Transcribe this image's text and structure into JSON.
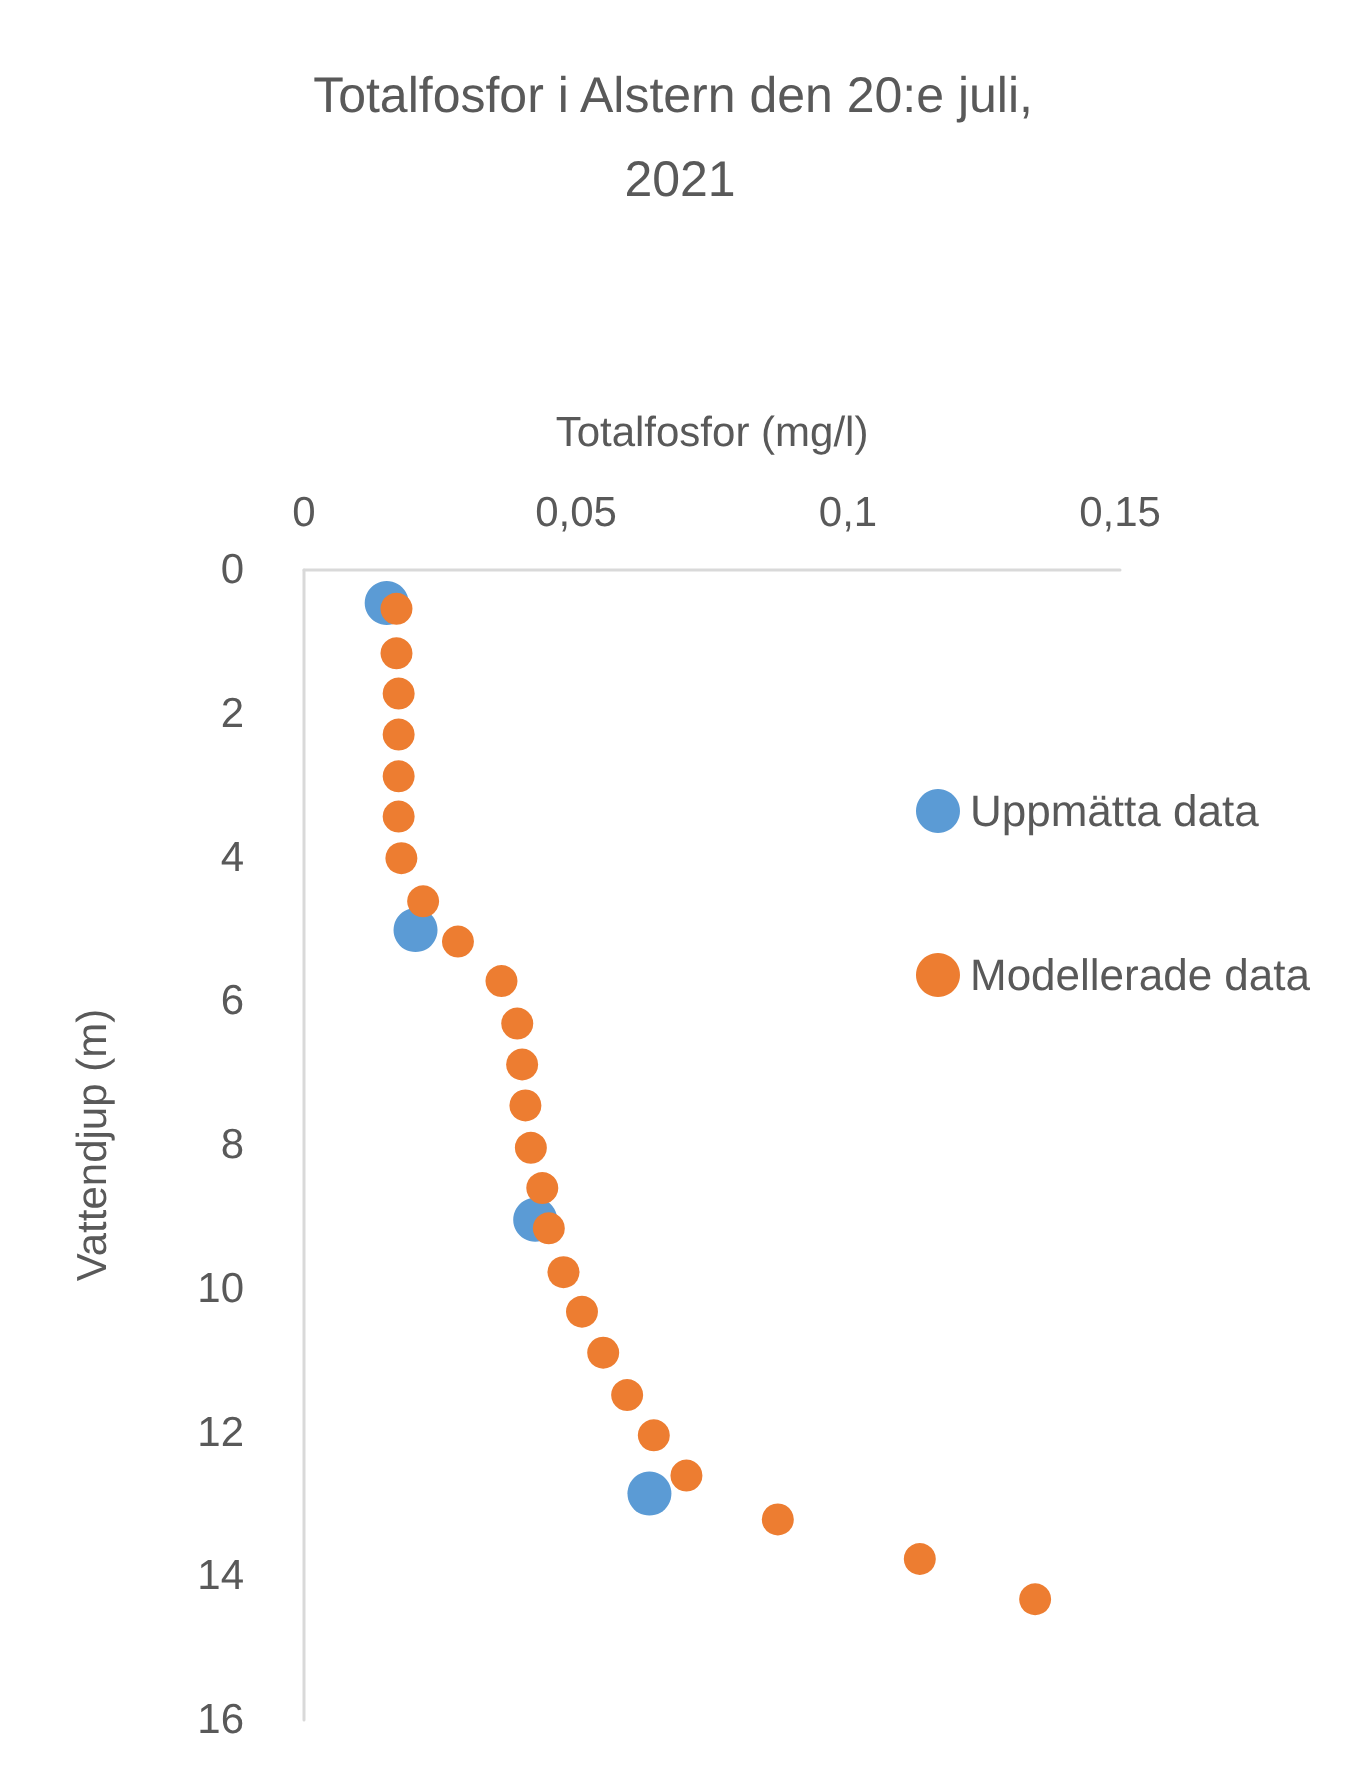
{
  "chart_data": {
    "type": "scatter",
    "title": "Totalfosfor i Alstern den 20:e juli, 2021",
    "xlabel": "Totalfosfor (mg/l)",
    "ylabel": "Vattendjup (m)",
    "xlim": [
      0,
      0.15
    ],
    "xticks": [
      {
        "value": 0,
        "label": "0"
      },
      {
        "value": 0.05,
        "label": "0,05"
      },
      {
        "value": 0.1,
        "label": "0,1"
      },
      {
        "value": 0.15,
        "label": "0,15"
      }
    ],
    "ylim": [
      16,
      0
    ],
    "yticks": [
      0,
      2,
      4,
      6,
      8,
      10,
      12,
      14,
      16
    ],
    "grid": false,
    "legend": "right",
    "marker": "circle",
    "series": [
      {
        "name": "Uppmätta data",
        "color": "#5b9bd5",
        "x": [
          0.0152,
          0.0205,
          0.0425,
          0.0635
        ],
        "values": [
          0.46,
          5.01,
          9.04,
          12.85
        ]
      },
      {
        "name": "Modellerade data",
        "color": "#ed7d31",
        "x": [
          0.017,
          0.017,
          0.0174,
          0.0174,
          0.0174,
          0.0174,
          0.0179,
          0.0219,
          0.0283,
          0.0363,
          0.0392,
          0.0401,
          0.0407,
          0.0417,
          0.0438,
          0.045,
          0.0477,
          0.0511,
          0.055,
          0.0594,
          0.0643,
          0.0703,
          0.0871,
          0.1132,
          0.1344
        ],
        "values": [
          0.54,
          1.16,
          1.72,
          2.29,
          2.87,
          3.43,
          4.01,
          4.61,
          5.17,
          5.72,
          6.31,
          6.88,
          7.45,
          8.04,
          8.6,
          9.16,
          9.77,
          10.32,
          10.89,
          11.48,
          12.04,
          12.6,
          13.21,
          13.76,
          14.32
        ]
      }
    ]
  }
}
